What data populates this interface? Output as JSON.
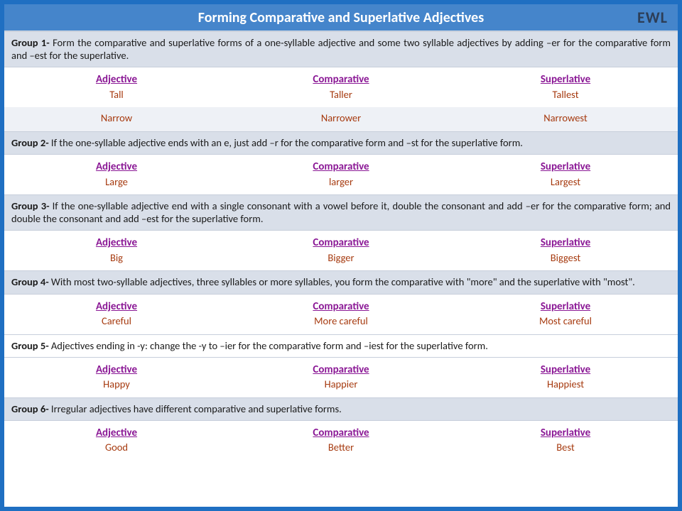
{
  "title": "Forming Comparative and Superlative Adjectives",
  "brand": "EWL",
  "headers": {
    "adj": "Adjective",
    "comp": "Comparative",
    "sup": "Superlative"
  },
  "groups": [
    {
      "label": "Group 1-",
      "rule": " Form the comparative and superlative forms of a one-syllable adjective and some two syllable adjectives by adding –er for the comparative form and –est for the superlative.",
      "bg": "shaded",
      "rows": [
        {
          "adj": "Tall",
          "comp": "Taller",
          "sup": "Tallest"
        },
        {
          "adj": "Narrow",
          "comp": "Narrower",
          "sup": "Narrowest"
        }
      ]
    },
    {
      "label": "Group 2-",
      "rule": " If the one-syllable adjective ends with an e, just add –r for the comparative form and –st for the superlative form.",
      "bg": "shaded",
      "rows": [
        {
          "adj": "Large",
          "comp": "larger",
          "sup": "Largest"
        }
      ]
    },
    {
      "label": "Group 3-",
      "rule": " If the one-syllable adjective end with a single consonant with a vowel before it, double the consonant and add –er for the comparative form; and double the consonant and add –est for the superlative form.",
      "bg": "shaded",
      "rows": [
        {
          "adj": "Big",
          "comp": "Bigger",
          "sup": "Biggest"
        }
      ]
    },
    {
      "label": "Group 4-",
      "rule": " With most two-syllable adjectives, three syllables or more syllables, you form the comparative with \"more\" and the superlative with \"most\".",
      "bg": "shaded",
      "rows": [
        {
          "adj": "Careful",
          "comp": "More careful",
          "sup": "Most careful"
        }
      ]
    },
    {
      "label": "Group 5-",
      "rule": " Adjectives ending in -y: change the -y to –ier for the comparative form and –iest for the superlative form.",
      "bg": "light",
      "rows": [
        {
          "adj": "Happy",
          "comp": "Happier",
          "sup": "Happiest"
        }
      ]
    },
    {
      "label": "Group 6-",
      "rule": "  Irregular adjectives have different comparative and superlative forms.",
      "bg": "shaded",
      "rows": [
        {
          "adj": "Good",
          "comp": "Better",
          "sup": "Best"
        }
      ]
    }
  ],
  "colors": {
    "frame": "#1f6fc2",
    "titlebar": "#4585cb",
    "title_text": "#ffffff",
    "rule_bg": "#d9dfe9",
    "header_text": "#8a1795",
    "example_text": "#a63a0f",
    "alt_row": "#eef1f6",
    "brand_text": "#2d3e57"
  },
  "typography": {
    "title_size_pt": 20,
    "body_size_pt": 14.5,
    "header_size_pt": 15,
    "family": "Calibri"
  }
}
